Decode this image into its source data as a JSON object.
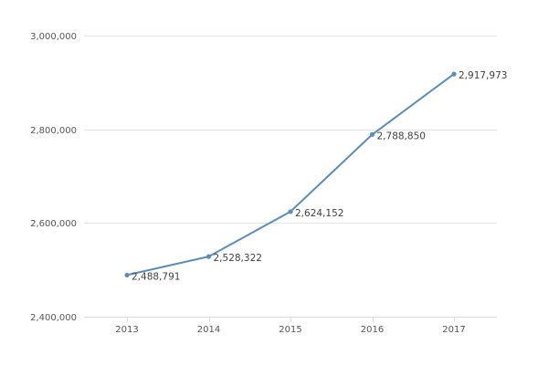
{
  "chart_data": {
    "type": "line",
    "categories": [
      "2013",
      "2014",
      "2015",
      "2016",
      "2017"
    ],
    "series": [
      {
        "values": [
          2488791,
          2528322,
          2624152,
          2788850,
          2917973
        ],
        "labels": [
          "2,488,791",
          "2,528,322",
          "2,624,152",
          "2,788,850",
          "2,917,973"
        ],
        "color": "#5b8db8"
      }
    ],
    "title": "",
    "xlabel": "",
    "ylabel": "",
    "ylim": [
      2400000,
      3000000
    ],
    "yticks": [
      2400000,
      2600000,
      2800000,
      3000000
    ],
    "ytick_labels": [
      "2,400,000",
      "2,600,000",
      "2,800,000",
      "3,000,000"
    ],
    "grid": true,
    "legend": "none"
  }
}
